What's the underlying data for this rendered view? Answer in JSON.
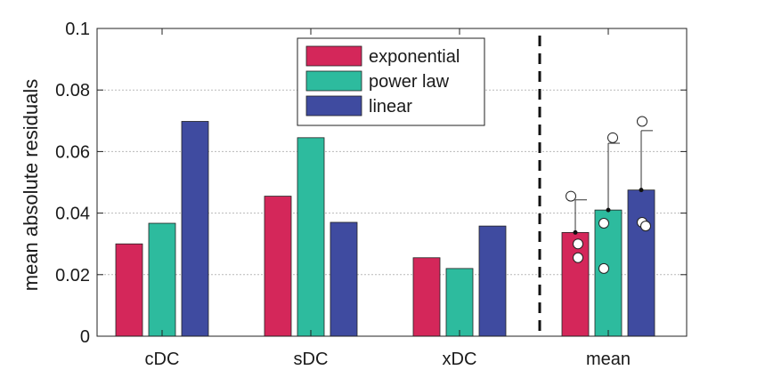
{
  "chart_data": {
    "type": "bar",
    "ylabel": "mean absolute residuals",
    "xlabel": "",
    "ylim": [
      0,
      0.1
    ],
    "yticks": [
      0,
      0.02,
      0.04,
      0.06,
      0.08,
      0.1
    ],
    "ytick_labels": [
      "0",
      "0.02",
      "0.04",
      "0.06",
      "0.08",
      "0.1"
    ],
    "grid": "horizontal dotted",
    "legend_position": "top-center",
    "categories": [
      "cDC",
      "sDC",
      "xDC",
      "mean"
    ],
    "series": [
      {
        "name": "exponential",
        "color": "#D4275A",
        "values": [
          0.03,
          0.0455,
          0.0255,
          0.0337
        ]
      },
      {
        "name": "power law",
        "color": "#2DBB9E",
        "values": [
          0.0367,
          0.0645,
          0.022,
          0.041
        ]
      },
      {
        "name": "linear",
        "color": "#3F4BA0",
        "values": [
          0.0698,
          0.037,
          0.0358,
          0.0475
        ]
      }
    ],
    "mean_error_upper": [
      0.0443,
      0.0627,
      0.0668
    ],
    "mean_points": [
      [
        0.0455,
        0.03,
        0.0255
      ],
      [
        0.0367,
        0.0645,
        0.022
      ],
      [
        0.0698,
        0.037,
        0.0358
      ]
    ],
    "separator": "dashed vertical line between xDC and mean"
  }
}
